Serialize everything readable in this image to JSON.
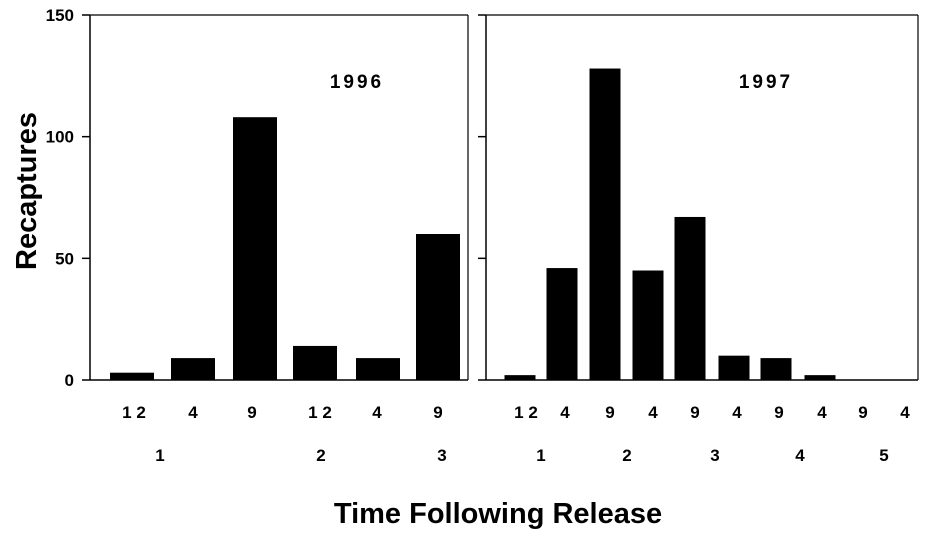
{
  "chart_data": {
    "type": "bar",
    "ylabel": "Recaptures",
    "xlabel": "Time Following Release",
    "ylim": [
      0,
      150
    ],
    "yticks": [
      "0",
      "50",
      "100",
      "150"
    ],
    "grid": false,
    "colors": {
      "bar": "#000000",
      "axis": "#000000",
      "background": "#ffffff"
    },
    "panels": [
      {
        "title": "1996",
        "categories": [
          "1 2",
          "4",
          "9",
          "1 2",
          "4",
          "9"
        ],
        "values": [
          3,
          9,
          108,
          14,
          9,
          60
        ],
        "groups": [
          {
            "label": "1",
            "start": 0,
            "end": 2
          },
          {
            "label": "2",
            "start": 3,
            "end": 4
          },
          {
            "label": "3",
            "start": 5,
            "end": 5
          }
        ]
      },
      {
        "title": "1997",
        "categories": [
          "1 2",
          "4",
          "9",
          "4",
          "9",
          "4",
          "9",
          "4",
          "9",
          "4"
        ],
        "values": [
          2,
          46,
          128,
          45,
          67,
          10,
          9,
          2,
          0,
          0
        ],
        "groups": [
          {
            "label": "1",
            "start": 0,
            "end": 1
          },
          {
            "label": "2",
            "start": 2,
            "end": 3
          },
          {
            "label": "3",
            "start": 4,
            "end": 5
          },
          {
            "label": "4",
            "start": 6,
            "end": 7
          },
          {
            "label": "5",
            "start": 8,
            "end": 9
          }
        ]
      }
    ]
  }
}
